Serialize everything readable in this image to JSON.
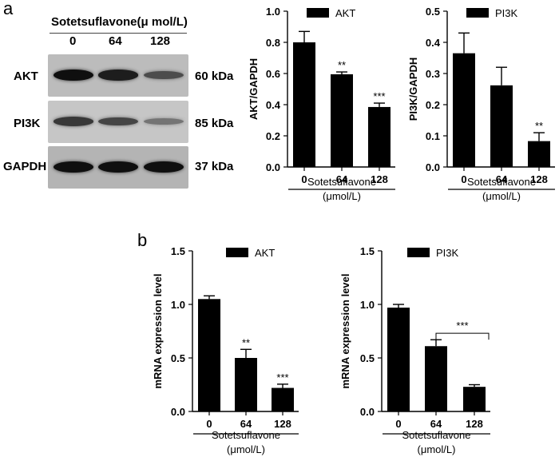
{
  "panels": {
    "a": "a",
    "b": "b"
  },
  "western_blot": {
    "header": "Sotetsuflavone(μ mol/L)",
    "lanes": [
      "0",
      "64",
      "128"
    ],
    "rows": [
      {
        "label": "AKT",
        "kda": "60 kDa",
        "intensity": [
          1.0,
          0.9,
          0.55
        ]
      },
      {
        "label": "PI3K",
        "kda": "85 kDa",
        "intensity": [
          0.7,
          0.6,
          0.25
        ]
      },
      {
        "label": "GAPDH",
        "kda": "37 kDa",
        "intensity": [
          1.0,
          1.0,
          1.0
        ]
      }
    ]
  },
  "chart_data": [
    {
      "id": "protein-akt",
      "type": "bar",
      "categories": [
        "0",
        "64",
        "128"
      ],
      "values": [
        0.8,
        0.595,
        0.385
      ],
      "errors": [
        0.07,
        0.015,
        0.025
      ],
      "significance": [
        "",
        "**",
        "***"
      ],
      "legend": "AKT",
      "ylabel": "AKT/GAPDH",
      "xlabel_lines": [
        "Sotetsuflavone",
        "(μmol/L)"
      ],
      "ylim": [
        0,
        1.0
      ],
      "yticks": [
        "0.0",
        "0.2",
        "0.4",
        "0.6",
        "0.8",
        "1.0"
      ]
    },
    {
      "id": "protein-pi3k",
      "type": "bar",
      "categories": [
        "0",
        "64",
        "128"
      ],
      "values": [
        0.365,
        0.262,
        0.083
      ],
      "errors": [
        0.065,
        0.058,
        0.027
      ],
      "significance": [
        "",
        "",
        "**"
      ],
      "legend": "PI3K",
      "ylabel": "PI3K/GAPDH",
      "xlabel_lines": [
        "Sotetsuflavone",
        "(μmol/L)"
      ],
      "ylim": [
        0,
        0.5
      ],
      "yticks": [
        "0.0",
        "0.1",
        "0.2",
        "0.3",
        "0.4",
        "0.5"
      ]
    },
    {
      "id": "mrna-akt",
      "type": "bar",
      "categories": [
        "0",
        "64",
        "128"
      ],
      "values": [
        1.05,
        0.5,
        0.22
      ],
      "errors": [
        0.03,
        0.08,
        0.035
      ],
      "significance": [
        "",
        "**",
        "***"
      ],
      "legend": "AKT",
      "ylabel": "mRNA expression level",
      "xlabel_lines": [
        "Sotetsuflavone",
        "(μmol/L)"
      ],
      "ylim": [
        0,
        1.5
      ],
      "yticks": [
        "0.0",
        "0.5",
        "1.0",
        "1.5"
      ]
    },
    {
      "id": "mrna-pi3k",
      "type": "bar",
      "categories": [
        "0",
        "64",
        "128"
      ],
      "values": [
        0.97,
        0.61,
        0.23
      ],
      "errors": [
        0.03,
        0.06,
        0.02
      ],
      "significance": [
        "",
        "",
        ""
      ],
      "bracket": {
        "from": 1,
        "to": 2,
        "label": "***"
      },
      "legend": "PI3K",
      "ylabel": "mRNA expression level",
      "xlabel_lines": [
        "Sotetsuflavone",
        "(μmol/L)"
      ],
      "ylim": [
        0,
        1.5
      ],
      "yticks": [
        "0.0",
        "0.5",
        "1.0",
        "1.5"
      ]
    }
  ]
}
